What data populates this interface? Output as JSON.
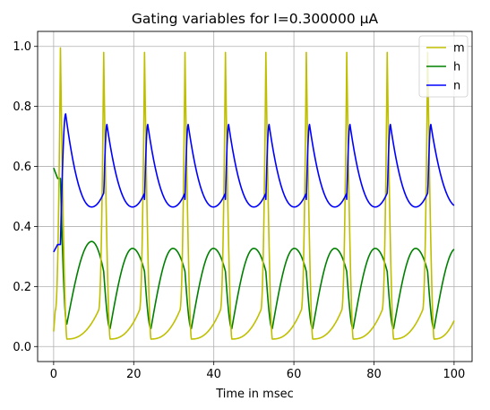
{
  "chart_data": {
    "type": "line",
    "title": "Gating variables for I=0.300000 μA",
    "xlabel": "Time in msec",
    "ylabel": "",
    "xlim": [
      -4,
      104.5
    ],
    "ylim": [
      -0.05,
      1.05
    ],
    "xticks": [
      0,
      20,
      40,
      60,
      80,
      100
    ],
    "yticks": [
      0.0,
      0.2,
      0.4,
      0.6,
      0.8,
      1.0
    ],
    "xtick_labels": [
      "0",
      "20",
      "40",
      "60",
      "80",
      "100"
    ],
    "ytick_labels": [
      "0.0",
      "0.2",
      "0.4",
      "0.6",
      "0.8",
      "1.0"
    ],
    "grid": true,
    "legend_position": "top-right",
    "spike_times": [
      1.7,
      12.5,
      22.7,
      32.8,
      42.9,
      53.0,
      63.1,
      73.2,
      83.3,
      93.4
    ],
    "series": [
      {
        "name": "m",
        "color": "#bfbf00",
        "points": [
          [
            0,
            0.05
          ],
          [
            0.8,
            0.3
          ],
          [
            1.7,
            0.995
          ],
          [
            3.3,
            0.3
          ],
          [
            4.2,
            0.03
          ],
          [
            5,
            0.025
          ],
          [
            8,
            0.035
          ],
          [
            10,
            0.07
          ],
          [
            11.4,
            0.2
          ],
          [
            12.5,
            0.98
          ],
          [
            14.1,
            0.2
          ],
          [
            15,
            0.025
          ],
          [
            18,
            0.035
          ],
          [
            21,
            0.09
          ],
          [
            22.7,
            0.98
          ],
          [
            33,
            0.98
          ],
          [
            43,
            0.98
          ],
          [
            53,
            0.98
          ],
          [
            63,
            0.98
          ],
          [
            73,
            0.98
          ],
          [
            83,
            0.98
          ],
          [
            93,
            0.98
          ],
          [
            95,
            0.025
          ],
          [
            100,
            0.095
          ]
        ]
      },
      {
        "name": "h",
        "color": "#008000",
        "points": [
          [
            0,
            0.595
          ],
          [
            1.0,
            0.56
          ],
          [
            2.0,
            0.3
          ],
          [
            3.3,
            0.075
          ],
          [
            5,
            0.2
          ],
          [
            7,
            0.31
          ],
          [
            9.5,
            0.35
          ],
          [
            11.3,
            0.25
          ],
          [
            13.6,
            0.06
          ],
          [
            16,
            0.2
          ],
          [
            20,
            0.325
          ],
          [
            23.8,
            0.06
          ],
          [
            30,
            0.325
          ],
          [
            33.9,
            0.06
          ],
          [
            40,
            0.325
          ],
          [
            44,
            0.06
          ],
          [
            50,
            0.325
          ],
          [
            54.1,
            0.06
          ],
          [
            60,
            0.325
          ],
          [
            64.2,
            0.06
          ],
          [
            70,
            0.325
          ],
          [
            74.3,
            0.06
          ],
          [
            80,
            0.325
          ],
          [
            84.4,
            0.06
          ],
          [
            90,
            0.325
          ],
          [
            94.5,
            0.06
          ],
          [
            100,
            0.325
          ]
        ]
      },
      {
        "name": "n",
        "color": "#0000ff",
        "points": [
          [
            0,
            0.315
          ],
          [
            1.0,
            0.34
          ],
          [
            2.0,
            0.65
          ],
          [
            3.0,
            0.775
          ],
          [
            5,
            0.63
          ],
          [
            8,
            0.5
          ],
          [
            10,
            0.465
          ],
          [
            11.5,
            0.49
          ],
          [
            13.2,
            0.74
          ],
          [
            16,
            0.58
          ],
          [
            20,
            0.465
          ],
          [
            23.3,
            0.74
          ],
          [
            30,
            0.465
          ],
          [
            33.4,
            0.74
          ],
          [
            40,
            0.465
          ],
          [
            43.5,
            0.74
          ],
          [
            50,
            0.465
          ],
          [
            53.6,
            0.74
          ],
          [
            60,
            0.465
          ],
          [
            63.7,
            0.74
          ],
          [
            70,
            0.465
          ],
          [
            73.8,
            0.74
          ],
          [
            80,
            0.465
          ],
          [
            83.9,
            0.74
          ],
          [
            90,
            0.465
          ],
          [
            94.0,
            0.74
          ],
          [
            100,
            0.47
          ]
        ]
      }
    ]
  }
}
